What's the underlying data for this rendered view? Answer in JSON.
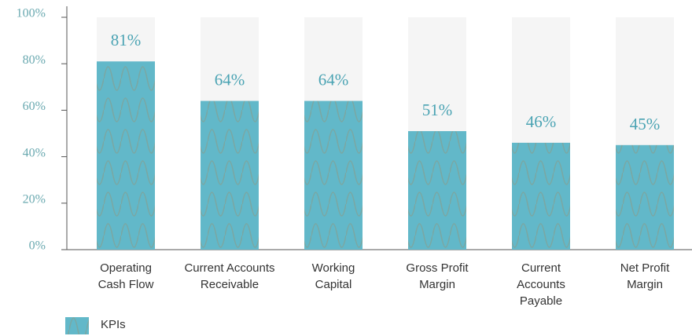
{
  "chart_data": {
    "type": "bar",
    "categories": [
      "Operating Cash Flow",
      "Current Accounts Receivable",
      "Working Capital",
      "Gross Profit Margin",
      "Current Accounts Payable",
      "Net Profit Margin"
    ],
    "series": [
      {
        "name": "KPIs",
        "color": "#62b8c9",
        "values": [
          81,
          64,
          64,
          51,
          46,
          45
        ],
        "value_labels": [
          "81%",
          "64%",
          "64%",
          "51%",
          "46%",
          "45%"
        ]
      }
    ],
    "ylim": [
      0,
      100
    ],
    "yticks": [
      {
        "value": 0,
        "label": "0%"
      },
      {
        "value": 20,
        "label": "20%"
      },
      {
        "value": 40,
        "label": "40%"
      },
      {
        "value": 60,
        "label": "60%"
      },
      {
        "value": 80,
        "label": "80%"
      },
      {
        "value": 100,
        "label": "100%"
      }
    ],
    "legend": "bottom-left"
  }
}
